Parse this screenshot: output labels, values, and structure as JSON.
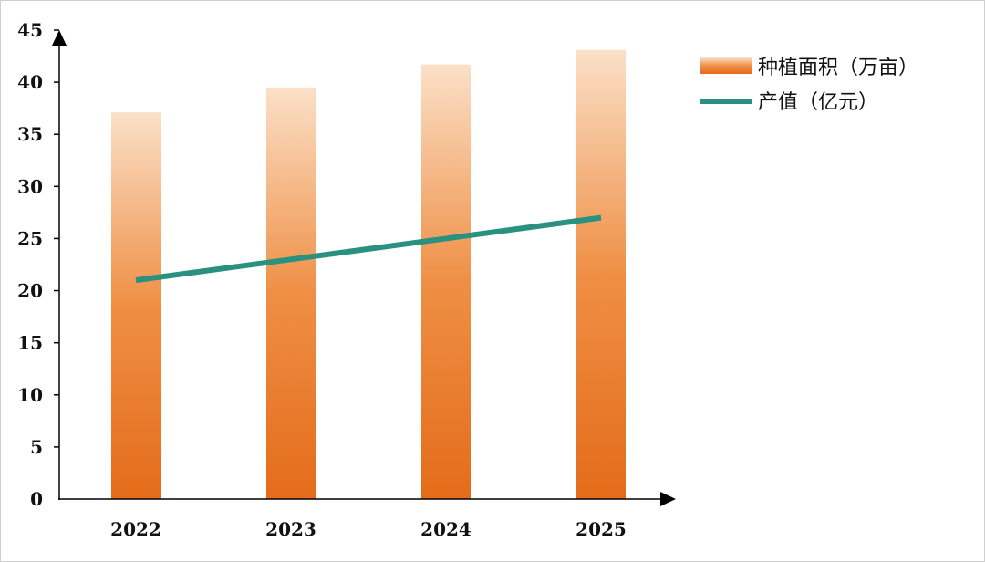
{
  "chart_data": {
    "type": "bar",
    "categories": [
      "2022",
      "2023",
      "2024",
      "2025"
    ],
    "ylim": [
      0,
      45
    ],
    "yticks": [
      0,
      5,
      10,
      15,
      20,
      25,
      30,
      35,
      40,
      45
    ],
    "grid": false,
    "legend": "top-right",
    "series": [
      {
        "name": "种植面积（万亩）",
        "type": "bar",
        "values": [
          37.1,
          39.5,
          41.7,
          43.1
        ],
        "color_top": "#fbe0c8",
        "color_bottom": "#e46c1a"
      },
      {
        "name": "产值（亿元）",
        "type": "line",
        "values": [
          21,
          23,
          25,
          27
        ],
        "color": "#2a9080"
      }
    ]
  }
}
